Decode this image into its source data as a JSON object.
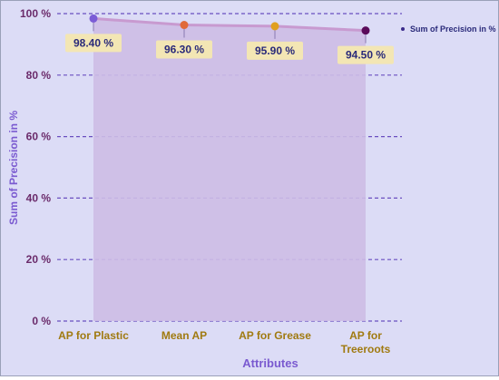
{
  "chart_data": {
    "type": "area",
    "categories": [
      "AP for Plastic",
      "Mean AP",
      "AP for Grease",
      "AP for Treeroots"
    ],
    "category_lines": [
      [
        "AP for Plastic"
      ],
      [
        "Mean AP"
      ],
      [
        "AP for Grease"
      ],
      [
        "AP for",
        "Treeroots"
      ]
    ],
    "series": [
      {
        "name": "Sum of Precision in %",
        "values": [
          98.4,
          96.3,
          95.9,
          94.5
        ],
        "data_labels": [
          "98.40 %",
          "96.30 %",
          "95.90 %",
          "94.50 %"
        ],
        "point_colors": [
          "#7b5cd6",
          "#e06a3a",
          "#e0a020",
          "#5a0a5a"
        ]
      }
    ],
    "xlabel": "Attributes",
    "ylabel": "Sum of Precision in %",
    "ylim": [
      0,
      100
    ],
    "yticks": [
      0,
      20,
      40,
      60,
      80,
      100
    ],
    "ytick_labels": [
      "0 %",
      "20 %",
      "40 %",
      "60 %",
      "80 %",
      "100 %"
    ],
    "grid": true,
    "legend_position": "top-right",
    "colors": {
      "area_fill": "#cdbde6",
      "line": "#c89ad0",
      "grid": "#6a4fc0",
      "data_label_bg": "#f3e6b4",
      "data_label_text": "#2a2a7a",
      "tick_text": "#6a2a6a",
      "category_text": "#a07a10",
      "axis_title": "#7a5ad0",
      "legend_text": "#2a2a7a",
      "background": "#dcdcf6"
    }
  }
}
